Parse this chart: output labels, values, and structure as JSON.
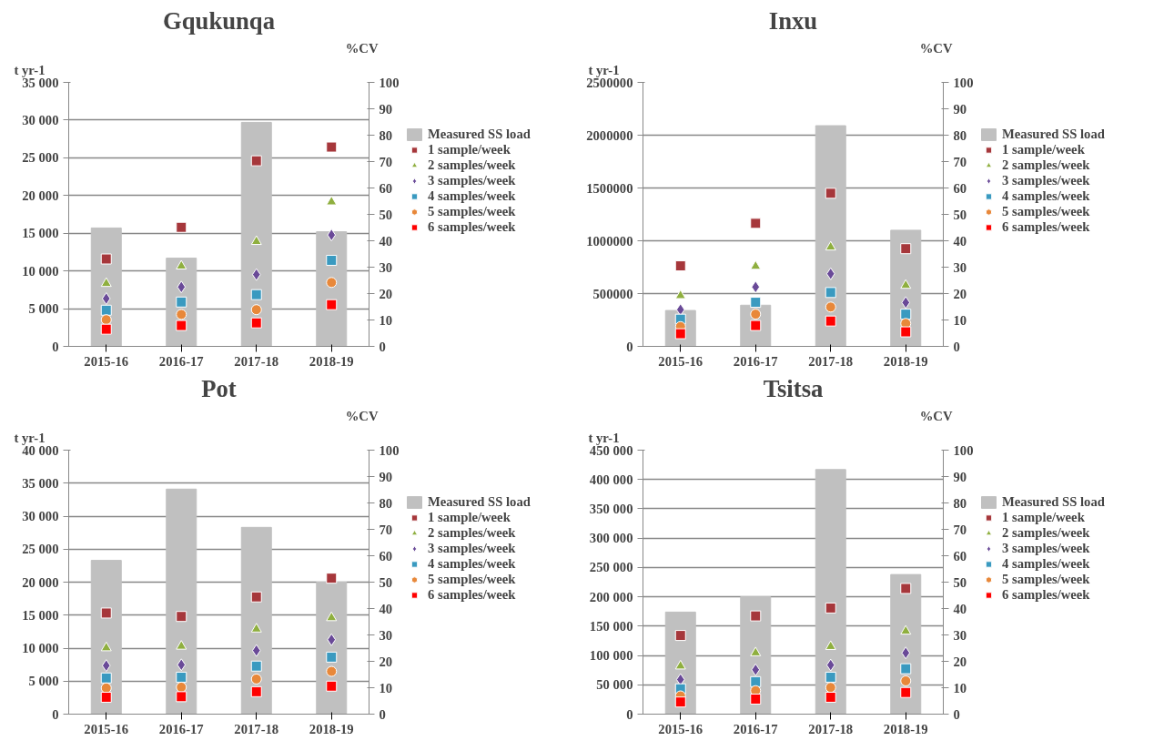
{
  "chart_data": [
    {
      "type": "bar",
      "title": "Gqukunqa",
      "ylabel": "t yr-1",
      "y2label": "%CV",
      "categories": [
        "2015-16",
        "2016-17",
        "2017-18",
        "2018-19"
      ],
      "series": [
        {
          "name": "Measured SS load",
          "color": "#c0c0c0",
          "values": [
            15700,
            11700,
            29700,
            15200
          ]
        },
        {
          "name": "1 sample/week",
          "type": "scatter",
          "axis": "y2",
          "marker": "square",
          "color": "#a6373b",
          "values": [
            33.1,
            45.1,
            70.3,
            75.5
          ]
        },
        {
          "name": "2 samples/week",
          "type": "scatter",
          "axis": "y2",
          "marker": "triangle",
          "color": "#8faf3f",
          "values": [
            23.8,
            30.4,
            39.7,
            54.7
          ]
        },
        {
          "name": "3 samples/week",
          "type": "scatter",
          "axis": "y2",
          "marker": "diamond",
          "color": "#6a4a98",
          "values": [
            18.1,
            22.5,
            27.2,
            42.2
          ]
        },
        {
          "name": "4 samples/week",
          "type": "scatter",
          "axis": "y2",
          "marker": "square",
          "color": "#3a9ac0",
          "values": [
            13.7,
            16.8,
            19.6,
            32.6
          ]
        },
        {
          "name": "5 samples/week",
          "type": "scatter",
          "axis": "y2",
          "marker": "circle",
          "color": "#e8883a",
          "values": [
            10.1,
            12.1,
            13.9,
            24.2
          ]
        },
        {
          "name": "6 samples/week",
          "type": "scatter",
          "axis": "y2",
          "marker": "square",
          "color": "#ff0000",
          "values": [
            6.5,
            7.9,
            8.9,
            15.8
          ]
        }
      ],
      "ylim": [
        0,
        35000
      ],
      "yticks": [
        0,
        {
          "value": 5000,
          "label": "5 000"
        },
        {
          "value": 10000,
          "label": "10 000"
        },
        {
          "value": 15000,
          "label": "15 000"
        },
        {
          "value": 20000,
          "label": "20 000"
        },
        {
          "value": 25000,
          "label": "25 000"
        },
        {
          "value": 30000,
          "label": "30 000"
        },
        {
          "value": 35000,
          "label": "35 000"
        }
      ],
      "y2lim": [
        0,
        100
      ],
      "y2ticks": [
        0,
        10,
        20,
        30,
        40,
        50,
        60,
        70,
        80,
        90,
        100
      ],
      "grid": "y",
      "legend": "right"
    },
    {
      "type": "bar",
      "title": "Inxu",
      "ylabel": "t yr-1",
      "y2label": "%CV",
      "categories": [
        "2015-16",
        "2016-17",
        "2017-18",
        "2018-19"
      ],
      "series": [
        {
          "name": "Measured SS load",
          "color": "#c0c0c0",
          "values": [
            340000,
            390000,
            2090000,
            1100000
          ]
        },
        {
          "name": "1 sample/week",
          "type": "scatter",
          "axis": "y2",
          "marker": "square",
          "color": "#a6373b",
          "values": [
            30.5,
            46.6,
            58.0,
            37.0
          ]
        },
        {
          "name": "2 samples/week",
          "type": "scatter",
          "axis": "y2",
          "marker": "triangle",
          "color": "#8faf3f",
          "values": [
            19.2,
            30.3,
            37.6,
            23.1
          ]
        },
        {
          "name": "3 samples/week",
          "type": "scatter",
          "axis": "y2",
          "marker": "diamond",
          "color": "#6a4a98",
          "values": [
            13.9,
            22.5,
            27.5,
            16.6
          ]
        },
        {
          "name": "4 samples/week",
          "type": "scatter",
          "axis": "y2",
          "marker": "square",
          "color": "#3a9ac0",
          "values": [
            10.3,
            16.7,
            20.4,
            12.2
          ]
        },
        {
          "name": "5 samples/week",
          "type": "scatter",
          "axis": "y2",
          "marker": "circle",
          "color": "#e8883a",
          "values": [
            7.5,
            12.2,
            14.9,
            8.7
          ]
        },
        {
          "name": "6 samples/week",
          "type": "scatter",
          "axis": "y2",
          "marker": "square",
          "color": "#ff0000",
          "values": [
            4.8,
            7.9,
            9.6,
            5.5
          ]
        }
      ],
      "ylim": [
        0,
        2500000
      ],
      "yticks": [
        0,
        500000,
        1000000,
        1500000,
        2000000,
        2500000
      ],
      "y2lim": [
        0,
        100
      ],
      "y2ticks": [
        0,
        10,
        20,
        30,
        40,
        50,
        60,
        70,
        80,
        90,
        100
      ],
      "grid": "y",
      "legend": "right"
    },
    {
      "type": "bar",
      "title": "Pot",
      "ylabel": "t yr-1",
      "y2label": "%CV",
      "categories": [
        "2015-16",
        "2016-17",
        "2017-18",
        "2018-19"
      ],
      "series": [
        {
          "name": "Measured SS load",
          "color": "#c0c0c0",
          "values": [
            23300,
            34100,
            28300,
            20000
          ]
        },
        {
          "name": "1 sample/week",
          "type": "scatter",
          "axis": "y2",
          "marker": "square",
          "color": "#a6373b",
          "values": [
            38.3,
            37.0,
            44.4,
            51.5
          ]
        },
        {
          "name": "2 samples/week",
          "type": "scatter",
          "axis": "y2",
          "marker": "triangle",
          "color": "#8faf3f",
          "values": [
            25.1,
            25.7,
            32.2,
            36.5
          ]
        },
        {
          "name": "3 samples/week",
          "type": "scatter",
          "axis": "y2",
          "marker": "diamond",
          "color": "#6a4a98",
          "values": [
            18.4,
            18.7,
            24.1,
            28.2
          ]
        },
        {
          "name": "4 samples/week",
          "type": "scatter",
          "axis": "y2",
          "marker": "square",
          "color": "#3a9ac0",
          "values": [
            13.7,
            14.0,
            18.2,
            21.6
          ]
        },
        {
          "name": "5 samples/week",
          "type": "scatter",
          "axis": "y2",
          "marker": "circle",
          "color": "#e8883a",
          "values": [
            9.9,
            10.2,
            13.3,
            16.2
          ]
        },
        {
          "name": "6 samples/week",
          "type": "scatter",
          "axis": "y2",
          "marker": "square",
          "color": "#ff0000",
          "values": [
            6.4,
            6.6,
            8.5,
            10.6
          ]
        }
      ],
      "ylim": [
        0,
        40000
      ],
      "yticks": [
        0,
        {
          "value": 5000,
          "label": "5 000"
        },
        {
          "value": 10000,
          "label": "10 000"
        },
        {
          "value": 15000,
          "label": "15 000"
        },
        {
          "value": 20000,
          "label": "20 000"
        },
        {
          "value": 25000,
          "label": "25 000"
        },
        {
          "value": 30000,
          "label": "30 000"
        },
        {
          "value": 35000,
          "label": "35 000"
        },
        {
          "value": 40000,
          "label": "40 000"
        }
      ],
      "y2lim": [
        0,
        100
      ],
      "y2ticks": [
        0,
        10,
        20,
        30,
        40,
        50,
        60,
        70,
        80,
        90,
        100
      ],
      "grid": "y",
      "legend": "right"
    },
    {
      "type": "bar",
      "title": "Tsitsa",
      "ylabel": "t yr-1",
      "y2label": "%CV",
      "categories": [
        "2015-16",
        "2016-17",
        "2017-18",
        "2018-19"
      ],
      "series": [
        {
          "name": "Measured SS load",
          "color": "#c0c0c0",
          "values": [
            174000,
            200000,
            417000,
            238000
          ]
        },
        {
          "name": "1 sample/week",
          "type": "scatter",
          "axis": "y2",
          "marker": "square",
          "color": "#a6373b",
          "values": [
            29.8,
            37.2,
            40.2,
            47.6
          ]
        },
        {
          "name": "2 samples/week",
          "type": "scatter",
          "axis": "y2",
          "marker": "triangle",
          "color": "#8faf3f",
          "values": [
            18.2,
            23.2,
            25.6,
            31.4
          ]
        },
        {
          "name": "3 samples/week",
          "type": "scatter",
          "axis": "y2",
          "marker": "diamond",
          "color": "#6a4a98",
          "values": [
            13.1,
            16.8,
            18.6,
            23.2
          ]
        },
        {
          "name": "4 samples/week",
          "type": "scatter",
          "axis": "y2",
          "marker": "square",
          "color": "#3a9ac0",
          "values": [
            9.6,
            12.3,
            14.0,
            17.2
          ]
        },
        {
          "name": "5 samples/week",
          "type": "scatter",
          "axis": "y2",
          "marker": "circle",
          "color": "#e8883a",
          "values": [
            6.9,
            8.9,
            10.1,
            12.6
          ]
        },
        {
          "name": "6 samples/week",
          "type": "scatter",
          "axis": "y2",
          "marker": "square",
          "color": "#ff0000",
          "values": [
            4.6,
            5.7,
            6.4,
            8.2
          ]
        }
      ],
      "ylim": [
        0,
        450000
      ],
      "yticks": [
        0,
        {
          "value": 50000,
          "label": "50 000"
        },
        {
          "value": 100000,
          "label": "100 000"
        },
        {
          "value": 150000,
          "label": "150 000"
        },
        {
          "value": 200000,
          "label": "200 000"
        },
        {
          "value": 250000,
          "label": "250 000"
        },
        {
          "value": 300000,
          "label": "300 000"
        },
        {
          "value": 350000,
          "label": "350 000"
        },
        {
          "value": 400000,
          "label": "400 000"
        },
        {
          "value": 450000,
          "label": "450 000"
        }
      ],
      "y2lim": [
        0,
        100
      ],
      "y2ticks": [
        0,
        10,
        20,
        30,
        40,
        50,
        60,
        70,
        80,
        90,
        100
      ],
      "grid": "y",
      "legend": "right"
    }
  ]
}
